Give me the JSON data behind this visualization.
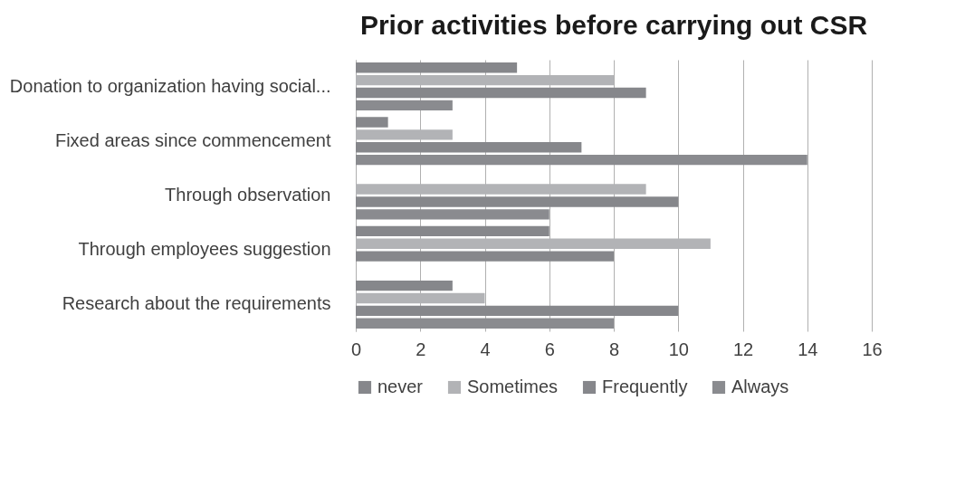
{
  "chart_data": {
    "type": "bar",
    "orientation": "horizontal",
    "title": "Prior activities before carrying out CSR",
    "categories": [
      "Donation to organization having social...",
      "Fixed areas since commencement",
      "Through observation",
      "Through employees suggestion",
      "Research about the requirements"
    ],
    "series": [
      {
        "name": "never",
        "color": "#86878b",
        "values": [
          5,
          1,
          0,
          6,
          3
        ]
      },
      {
        "name": "Sometimes",
        "color": "#b2b3b6",
        "values": [
          8,
          3,
          9,
          11,
          4
        ]
      },
      {
        "name": "Frequently",
        "color": "#86878b",
        "values": [
          9,
          7,
          10,
          8,
          10
        ]
      },
      {
        "name": "Always",
        "color": "#8a8b8f",
        "values": [
          3,
          14,
          6,
          0,
          8
        ]
      }
    ],
    "xlim": [
      0,
      16
    ],
    "xticks": [
      0,
      2,
      4,
      6,
      8,
      10,
      12,
      14,
      16
    ],
    "grid": "x",
    "legend": "bottom"
  }
}
